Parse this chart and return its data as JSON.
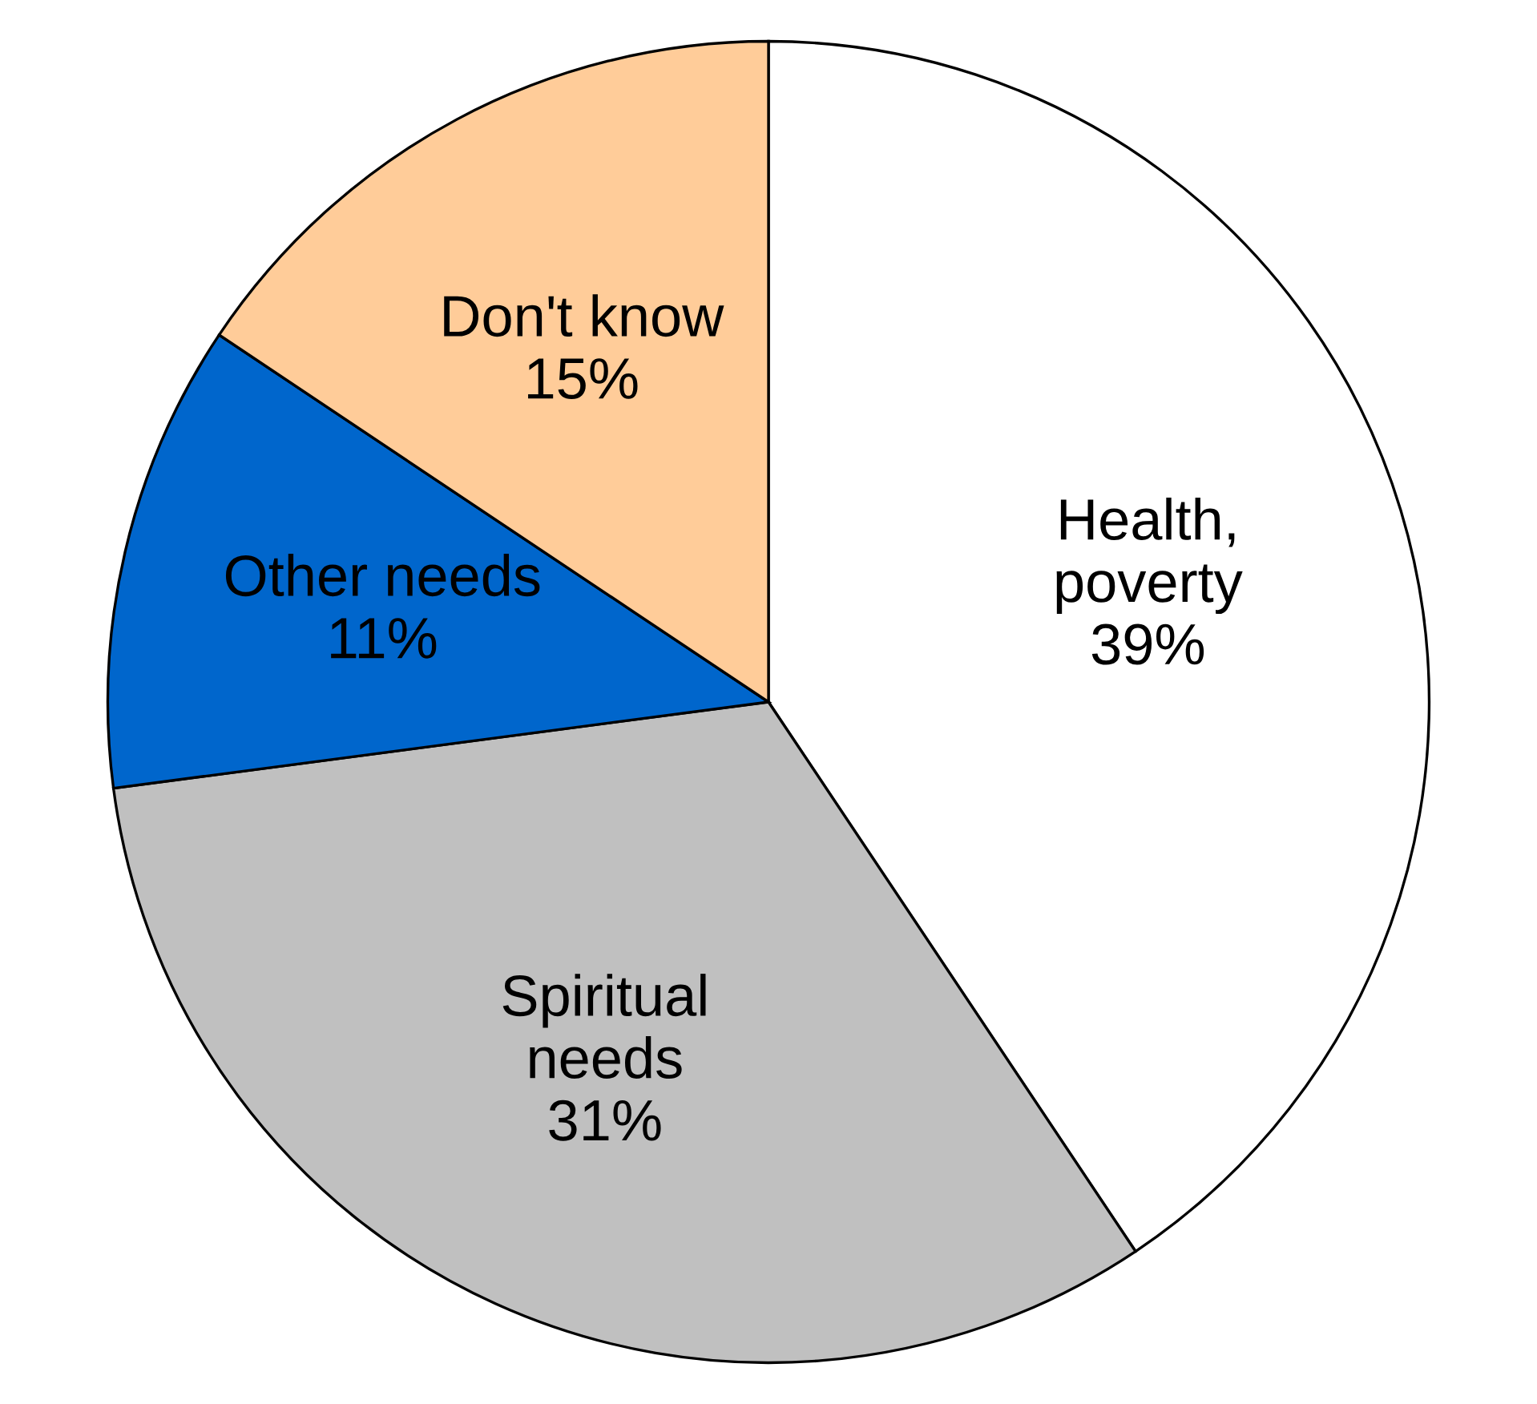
{
  "chart_data": {
    "type": "pie",
    "categories": [
      "Health,\npoverty",
      "Spiritual\nneeds",
      "Other needs",
      "Don't know"
    ],
    "values": [
      39,
      31,
      11,
      15
    ],
    "value_labels": [
      "39%",
      "31%",
      "11%",
      "15%"
    ],
    "colors": [
      "#ffffff",
      "#c0c0c0",
      "#0066cc",
      "#ffcc99"
    ]
  }
}
